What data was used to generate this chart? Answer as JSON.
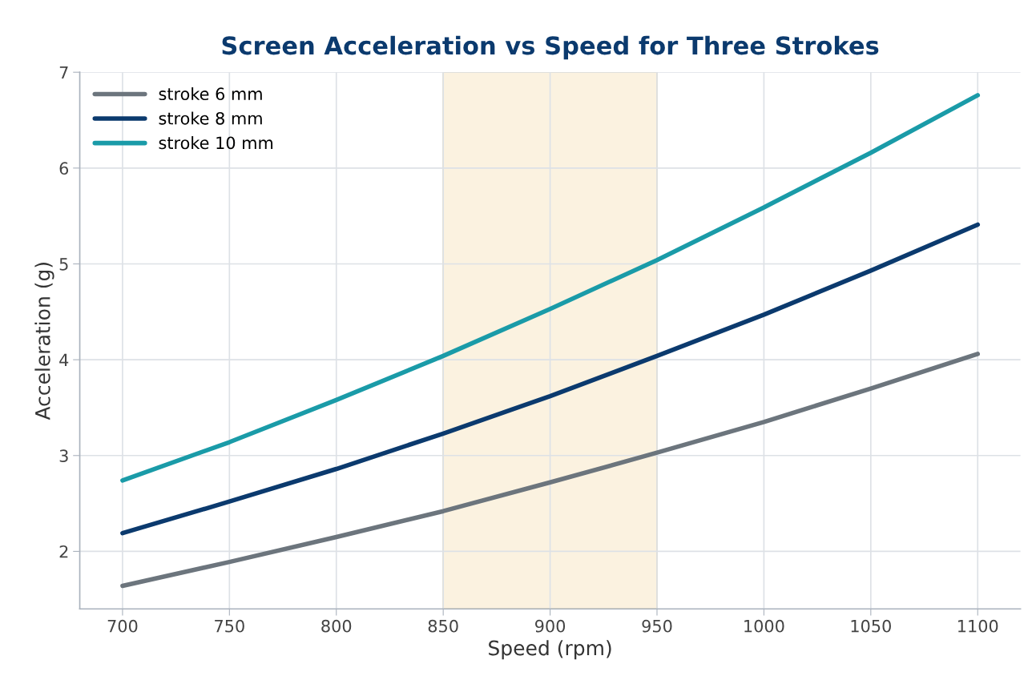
{
  "chart_data": {
    "type": "line",
    "title": "Screen Acceleration vs Speed for Three Strokes",
    "xlabel": "Speed (rpm)",
    "ylabel": "Acceleration (g)",
    "x": [
      700,
      750,
      800,
      850,
      900,
      950,
      1000,
      1050,
      1100
    ],
    "series": [
      {
        "name": "stroke 6 mm",
        "color": "#6c757d",
        "values": [
          1.64,
          1.89,
          2.15,
          2.42,
          2.72,
          3.03,
          3.35,
          3.7,
          4.06
        ]
      },
      {
        "name": "stroke 8 mm",
        "color": "#0b3a6e",
        "values": [
          2.19,
          2.52,
          2.86,
          3.23,
          3.62,
          4.04,
          4.47,
          4.93,
          5.41
        ]
      },
      {
        "name": "stroke 10 mm",
        "color": "#1a9ba8",
        "values": [
          2.74,
          3.14,
          3.58,
          4.04,
          4.53,
          5.04,
          5.59,
          6.16,
          6.76
        ]
      }
    ],
    "xlim": [
      680,
      1120
    ],
    "ylim": [
      1.4,
      7
    ],
    "xticks": [
      700,
      750,
      800,
      850,
      900,
      950,
      1000,
      1050,
      1100
    ],
    "yticks": [
      2,
      3,
      4,
      5,
      6,
      7
    ],
    "bands": [
      {
        "axis": "x",
        "from": 850,
        "to": 950,
        "color": "#fbf2e0"
      }
    ],
    "grid": true,
    "legend": "top left",
    "marker": "none",
    "line_style": "solid"
  }
}
